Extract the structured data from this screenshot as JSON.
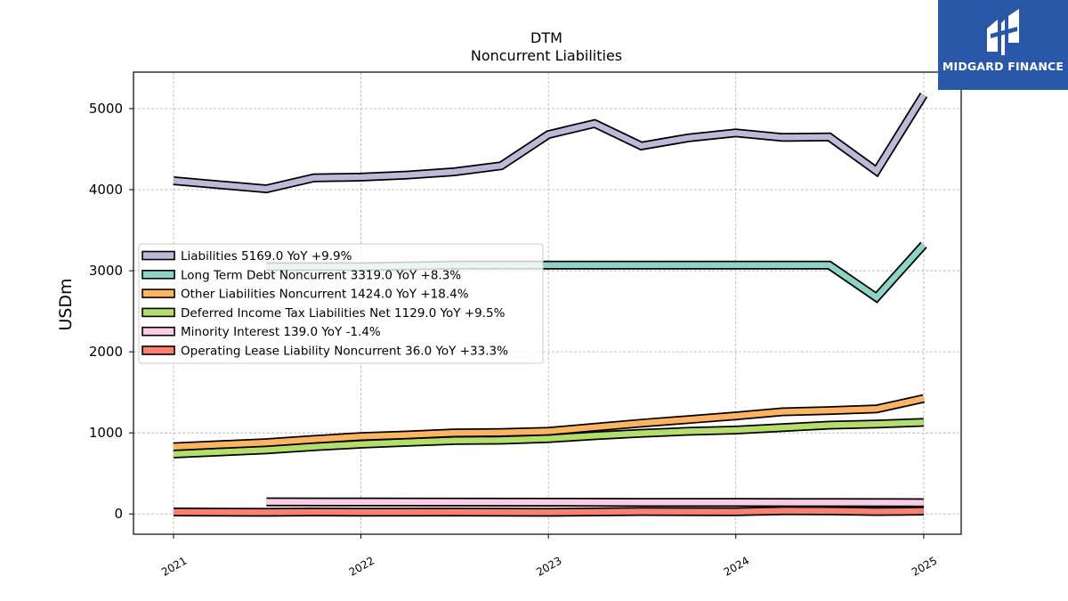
{
  "chart_data": {
    "type": "line",
    "title": "DTM",
    "subtitle": "Noncurrent  Liabilities",
    "ylabel": "USDm",
    "xlabel": "",
    "xlim": [
      "2020-10-15",
      "2025-03-15"
    ],
    "ylim": [
      -250,
      5450
    ],
    "yticks": [
      0,
      1000,
      2000,
      3000,
      4000,
      5000
    ],
    "xticks": [
      "2021",
      "2022",
      "2023",
      "2024",
      "2025"
    ],
    "grid": true,
    "legend_placement": "center-left",
    "series": [
      {
        "name": "Liabilities  5169.0 YoY +9.9%",
        "color": "#bcb9d9",
        "points": [
          [
            "2021-01-01",
            4110
          ],
          [
            "2021-07-01",
            4010
          ],
          [
            "2021-10-01",
            4145
          ],
          [
            "2022-01-01",
            4155
          ],
          [
            "2022-04-01",
            4180
          ],
          [
            "2022-07-01",
            4220
          ],
          [
            "2022-10-01",
            4295
          ],
          [
            "2023-01-01",
            4680
          ],
          [
            "2023-04-01",
            4815
          ],
          [
            "2023-07-01",
            4540
          ],
          [
            "2023-10-01",
            4640
          ],
          [
            "2024-01-01",
            4700
          ],
          [
            "2024-04-01",
            4645
          ],
          [
            "2024-07-01",
            4650
          ],
          [
            "2024-10-01",
            4230
          ],
          [
            "2025-01-01",
            5169
          ]
        ]
      },
      {
        "name": "Long Term Debt Noncurrent  3319.0 YoY +8.3%",
        "color": "#8dd3c7",
        "points": [
          [
            "2021-07-01",
            3050
          ],
          [
            "2022-01-01",
            3050
          ],
          [
            "2022-07-01",
            3070
          ],
          [
            "2023-01-01",
            3070
          ],
          [
            "2023-07-01",
            3070
          ],
          [
            "2024-01-01",
            3070
          ],
          [
            "2024-07-01",
            3070
          ],
          [
            "2024-10-01",
            2670
          ],
          [
            "2025-01-01",
            3319
          ]
        ]
      },
      {
        "name": "Other Liabilities Noncurrent  1424.0 YoY +18.4%",
        "color": "#fdb462",
        "points": [
          [
            "2021-01-01",
            830
          ],
          [
            "2021-07-01",
            880
          ],
          [
            "2021-10-01",
            920
          ],
          [
            "2022-01-01",
            955
          ],
          [
            "2022-04-01",
            975
          ],
          [
            "2022-07-01",
            1000
          ],
          [
            "2022-10-01",
            1005
          ],
          [
            "2023-01-01",
            1020
          ],
          [
            "2023-04-01",
            1070
          ],
          [
            "2023-07-01",
            1120
          ],
          [
            "2023-10-01",
            1165
          ],
          [
            "2024-01-01",
            1210
          ],
          [
            "2024-04-01",
            1260
          ],
          [
            "2024-07-01",
            1275
          ],
          [
            "2024-10-01",
            1295
          ],
          [
            "2025-01-01",
            1424
          ]
        ]
      },
      {
        "name": "Deferred Income Tax Liabilities Net  1129.0 YoY +9.5%",
        "color": "#b3de69",
        "points": [
          [
            "2021-01-01",
            740
          ],
          [
            "2021-07-01",
            790
          ],
          [
            "2021-10-01",
            830
          ],
          [
            "2022-01-01",
            860
          ],
          [
            "2022-04-01",
            885
          ],
          [
            "2022-07-01",
            905
          ],
          [
            "2022-10-01",
            910
          ],
          [
            "2023-01-01",
            930
          ],
          [
            "2023-04-01",
            965
          ],
          [
            "2023-07-01",
            995
          ],
          [
            "2023-10-01",
            1020
          ],
          [
            "2024-01-01",
            1035
          ],
          [
            "2024-04-01",
            1065
          ],
          [
            "2024-07-01",
            1095
          ],
          [
            "2024-10-01",
            1110
          ],
          [
            "2025-01-01",
            1129
          ]
        ]
      },
      {
        "name": "Minority Interest  139.0 YoY -1.4%",
        "color": "#fccde5",
        "points": [
          [
            "2021-07-01",
            150
          ],
          [
            "2022-01-01",
            148
          ],
          [
            "2022-07-01",
            146
          ],
          [
            "2023-01-01",
            145
          ],
          [
            "2023-07-01",
            143
          ],
          [
            "2024-01-01",
            142
          ],
          [
            "2024-07-01",
            141
          ],
          [
            "2025-01-01",
            139
          ]
        ]
      },
      {
        "name": "Operating Lease Liability Noncurrent  36.0 YoY +33.3%",
        "color": "#fb8072",
        "points": [
          [
            "2021-01-01",
            25
          ],
          [
            "2021-07-01",
            20
          ],
          [
            "2021-10-01",
            25
          ],
          [
            "2022-01-01",
            22
          ],
          [
            "2022-07-01",
            24
          ],
          [
            "2023-01-01",
            20
          ],
          [
            "2023-07-01",
            30
          ],
          [
            "2024-01-01",
            27
          ],
          [
            "2024-04-01",
            40
          ],
          [
            "2024-07-01",
            38
          ],
          [
            "2024-10-01",
            30
          ],
          [
            "2025-01-01",
            36
          ]
        ]
      }
    ]
  },
  "logo": {
    "text": "MIDGARD FINANCE",
    "color": "#2a57a8"
  }
}
